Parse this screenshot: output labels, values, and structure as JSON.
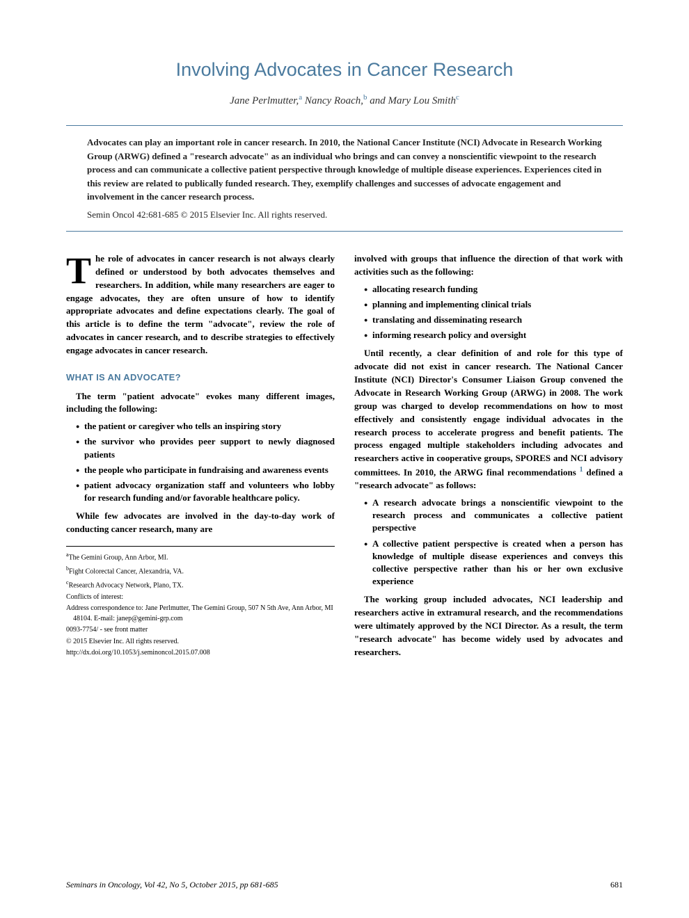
{
  "title": "Involving Advocates in Cancer Research",
  "authors_html": "Jane Perlmutter,<sup>a</sup> Nancy Roach,<sup>b</sup> and Mary Lou Smith<sup>c</sup>",
  "abstract": "Advocates can play an important role in cancer research. In 2010, the National Cancer Institute (NCI) Advocate in Research Working Group (ARWG) defined a \"research advocate\" as an individual who brings and can convey a nonscientific viewpoint to the research process and can communicate a collective patient perspective through knowledge of multiple disease experiences. Experiences cited in this review are related to publically funded research. They, exemplify challenges and successes of advocate engagement and involvement in the cancer research process.",
  "citation": "Semin Oncol 42:681-685 © 2015 Elsevier Inc. All rights reserved.",
  "intro_dropcap": "T",
  "intro_rest": "he role of advocates in cancer research is not always clearly defined or understood by both advocates themselves and researchers. In addition, while many researchers are eager to engage advocates, they are often unsure of how to identify appropriate advocates and define expectations clearly. The goal of this article is to define the term \"advocate\", review the role of advocates in cancer research, and to describe strategies to effectively engage advocates in cancer research.",
  "section1_head": "WHAT IS AN ADVOCATE?",
  "section1_intro": "The term \"patient advocate\" evokes many different images, including the following:",
  "section1_bullets": [
    "the patient or caregiver who tells an inspiring story",
    "the survivor who provides peer support to newly diagnosed patients",
    "the people who participate in fundraising and awareness events",
    "patient advocacy organization staff and volunteers who lobby for research funding and/or favorable healthcare policy."
  ],
  "section1_para2": "While few advocates are involved in the day-to-day work of conducting cancer research, many are",
  "col2_para1": "involved with groups that influence the direction of that work with activities such as the following:",
  "col2_bullets1": [
    "allocating research funding",
    "planning and implementing clinical trials",
    "translating and disseminating research",
    "informing research policy and oversight"
  ],
  "col2_para2_html": "Until recently, a clear definition of and role for this type of advocate did not exist in cancer research. The National Cancer Institute (NCI) Director's Consumer Liaison Group convened the Advocate in Research Working Group (ARWG) in 2008. The work group was charged to develop recommendations on how to most effectively and consistently engage individual advocates in the research process to accelerate progress and benefit patients. The process engaged multiple stakeholders including advocates and researchers active in cooperative groups, SPORES and NCI advisory committees. In 2010, the ARWG final recommendations <sup class=\"ref-sup\">1</sup> defined a \"research advocate\" as follows:",
  "col2_bullets2": [
    "A research advocate brings a nonscientific viewpoint to the research process and communicates a collective patient perspective",
    "A collective patient perspective is created when a person has knowledge of multiple disease experiences and conveys this collective perspective rather than his or her own exclusive experience"
  ],
  "col2_para3": "The working group included advocates, NCI leadership and researchers active in extramural research, and the recommendations were ultimately approved by the NCI Director. As a result, the term \"research advocate\" has become widely used by advocates and researchers.",
  "footnotes": [
    "<sup>a</sup>The Gemini Group, Ann Arbor, MI.",
    "<sup>b</sup>Fight Colorectal Cancer, Alexandria, VA.",
    "<sup>c</sup>Research Advocacy Network, Plano, TX.",
    "Conflicts of interest:",
    "Address correspondence to: Jane Perlmutter, The Gemini Group, 507 N 5th Ave, Ann Arbor, MI 48104. E-mail: janep@gemini-grp.com",
    "0093-7754/ - see front matter",
    "© 2015 Elsevier Inc. All rights reserved.",
    "http://dx.doi.org/10.1053/j.seminoncol.2015.07.008"
  ],
  "footer_journal": "Seminars in Oncology, Vol 42, No 5, October 2015, pp 681-685",
  "footer_pagenum": "681",
  "colors": {
    "heading": "#4a7a9e",
    "text": "#000000",
    "rule": "#4a7a9e"
  }
}
